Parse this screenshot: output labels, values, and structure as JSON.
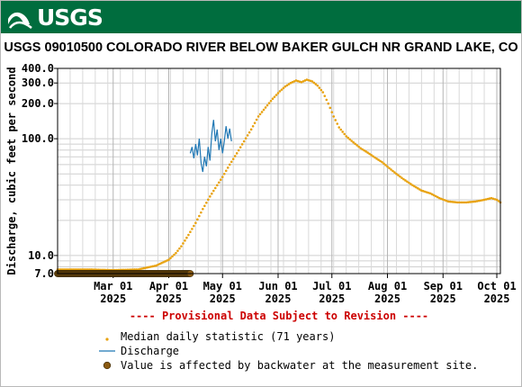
{
  "banner": {
    "logo_text": "USGS"
  },
  "chart_data": {
    "type": "line",
    "title": "USGS 09010500 COLORADO RIVER BELOW BAKER GULCH NR GRAND LAKE, CO",
    "ylabel": "Discharge, cubic feet per second",
    "xlabel": "",
    "y_scale": "log",
    "ylim": [
      7,
      400
    ],
    "xlim": [
      "2025-01-29",
      "2025-10-03"
    ],
    "grid": true,
    "legend_position": "bottom",
    "notice": "---- Provisional Data Subject to Revision ----",
    "notice_color": "#cc0000",
    "y_ticks": [
      {
        "value": 7,
        "label": "7.0"
      },
      {
        "value": 10,
        "label": "10.0"
      },
      {
        "value": 100,
        "label": "100.0"
      },
      {
        "value": 200,
        "label": "200.0"
      },
      {
        "value": 300,
        "label": "300.0"
      },
      {
        "value": 400,
        "label": "400.0"
      }
    ],
    "x_ticks": [
      {
        "date": "2025-03-01",
        "label": "Mar 01",
        "year": "2025"
      },
      {
        "date": "2025-04-01",
        "label": "Apr 01",
        "year": "2025"
      },
      {
        "date": "2025-05-01",
        "label": "May 01",
        "year": "2025"
      },
      {
        "date": "2025-06-01",
        "label": "Jun 01",
        "year": "2025"
      },
      {
        "date": "2025-07-01",
        "label": "Jul 01",
        "year": "2025"
      },
      {
        "date": "2025-08-01",
        "label": "Aug 01",
        "year": "2025"
      },
      {
        "date": "2025-09-01",
        "label": "Sep 01",
        "year": "2025"
      },
      {
        "date": "2025-10-01",
        "label": "Oct 01",
        "year": "2025"
      }
    ],
    "series": [
      {
        "name": "Median daily statistic (71 years)",
        "style": "point",
        "color": "#e8a20f",
        "points": [
          [
            "2025-01-29",
            7.6
          ],
          [
            "2025-02-15",
            7.6
          ],
          [
            "2025-03-01",
            7.5
          ],
          [
            "2025-03-15",
            7.6
          ],
          [
            "2025-03-25",
            8.2
          ],
          [
            "2025-04-01",
            9.2
          ],
          [
            "2025-04-05",
            10.5
          ],
          [
            "2025-04-08",
            12
          ],
          [
            "2025-04-12",
            15
          ],
          [
            "2025-04-16",
            19
          ],
          [
            "2025-04-20",
            25
          ],
          [
            "2025-04-24",
            32
          ],
          [
            "2025-04-28",
            40
          ],
          [
            "2025-05-01",
            47
          ],
          [
            "2025-05-05",
            60
          ],
          [
            "2025-05-09",
            75
          ],
          [
            "2025-05-13",
            95
          ],
          [
            "2025-05-17",
            120
          ],
          [
            "2025-05-21",
            155
          ],
          [
            "2025-05-25",
            185
          ],
          [
            "2025-05-29",
            220
          ],
          [
            "2025-06-02",
            255
          ],
          [
            "2025-06-05",
            280
          ],
          [
            "2025-06-08",
            300
          ],
          [
            "2025-06-11",
            315
          ],
          [
            "2025-06-14",
            305
          ],
          [
            "2025-06-17",
            320
          ],
          [
            "2025-06-20",
            310
          ],
          [
            "2025-06-23",
            285
          ],
          [
            "2025-06-26",
            250
          ],
          [
            "2025-06-29",
            200
          ],
          [
            "2025-07-02",
            155
          ],
          [
            "2025-07-05",
            125
          ],
          [
            "2025-07-09",
            105
          ],
          [
            "2025-07-13",
            93
          ],
          [
            "2025-07-17",
            83
          ],
          [
            "2025-07-21",
            76
          ],
          [
            "2025-07-25",
            69
          ],
          [
            "2025-07-29",
            63
          ],
          [
            "2025-08-02",
            56
          ],
          [
            "2025-08-06",
            50
          ],
          [
            "2025-08-10",
            45
          ],
          [
            "2025-08-15",
            40
          ],
          [
            "2025-08-20",
            36
          ],
          [
            "2025-08-25",
            34
          ],
          [
            "2025-08-30",
            31
          ],
          [
            "2025-09-04",
            29
          ],
          [
            "2025-09-09",
            28.5
          ],
          [
            "2025-09-14",
            28.5
          ],
          [
            "2025-09-19",
            29
          ],
          [
            "2025-09-24",
            30
          ],
          [
            "2025-09-28",
            31
          ],
          [
            "2025-10-01",
            30
          ],
          [
            "2025-10-03",
            28.5
          ]
        ]
      },
      {
        "name": "Discharge",
        "style": "line",
        "color": "#1f77b4",
        "points": [
          [
            "2025-04-13",
            75
          ],
          [
            "2025-04-14",
            85
          ],
          [
            "2025-04-15",
            68
          ],
          [
            "2025-04-16",
            90
          ],
          [
            "2025-04-17",
            72
          ],
          [
            "2025-04-18",
            100
          ],
          [
            "2025-04-19",
            62
          ],
          [
            "2025-04-20",
            52
          ],
          [
            "2025-04-21",
            70
          ],
          [
            "2025-04-22",
            58
          ],
          [
            "2025-04-23",
            85
          ],
          [
            "2025-04-24",
            65
          ],
          [
            "2025-04-25",
            110
          ],
          [
            "2025-04-26",
            145
          ],
          [
            "2025-04-27",
            95
          ],
          [
            "2025-04-28",
            120
          ],
          [
            "2025-04-29",
            80
          ],
          [
            "2025-04-30",
            100
          ],
          [
            "2025-05-01",
            75
          ],
          [
            "2025-05-02",
            95
          ],
          [
            "2025-05-03",
            128
          ],
          [
            "2025-05-04",
            100
          ],
          [
            "2025-05-05",
            122
          ],
          [
            "2025-05-06",
            95
          ]
        ]
      },
      {
        "name": "Value is affected by backwater at the measurement site.",
        "style": "marker",
        "color": "#8a5a12",
        "date_range": [
          "2025-01-29",
          "2025-04-13"
        ],
        "value": 7
      }
    ]
  }
}
